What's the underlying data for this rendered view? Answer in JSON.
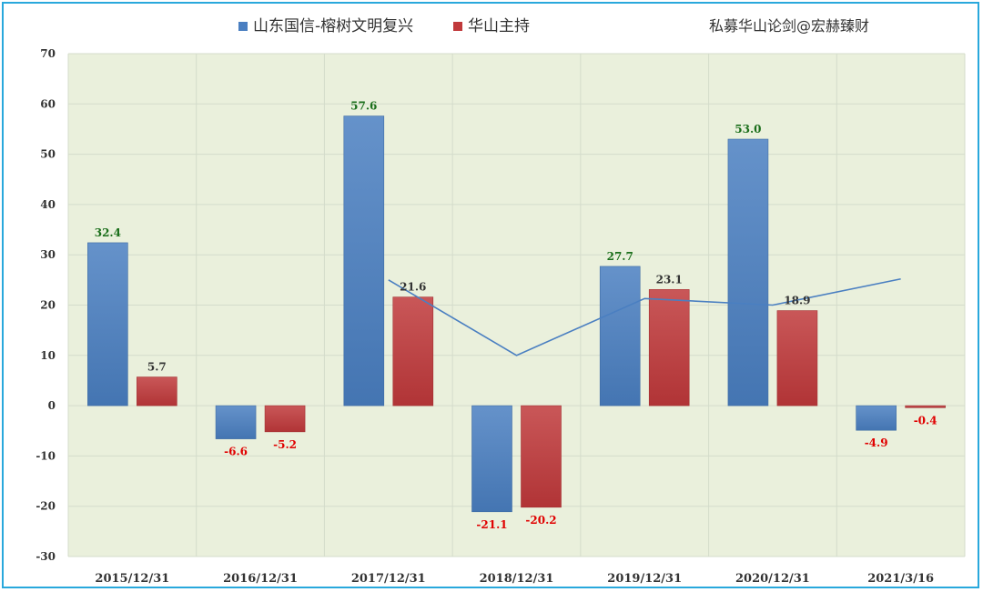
{
  "chart_data": {
    "type": "bar",
    "categories": [
      "2015/12/31",
      "2016/12/31",
      "2017/12/31",
      "2018/12/31",
      "2019/12/31",
      "2020/12/31",
      "2021/3/16"
    ],
    "series": [
      {
        "name": "山东国信-榕树文明复兴",
        "color": "#4a7fc1",
        "values": [
          32.4,
          -6.6,
          57.6,
          -21.1,
          27.7,
          53.0,
          -4.9
        ]
      },
      {
        "name": "华山主持",
        "color": "#c0393b",
        "values": [
          5.7,
          -5.2,
          21.6,
          -20.2,
          23.1,
          18.9,
          -0.4
        ]
      }
    ],
    "line": {
      "color": "#4a7fc1",
      "x_start_index": 2,
      "values": [
        25,
        10,
        21.3,
        20,
        25.2
      ]
    },
    "ylim": [
      -30,
      70
    ],
    "yticks": [
      70,
      60,
      50,
      40,
      30,
      20,
      10,
      0,
      -10,
      -20,
      -30
    ],
    "grid": true,
    "legend_position": "top-center",
    "positive_label_color_series1": "#1a6e1a",
    "positive_label_color_series2": "#333333",
    "negative_label_color": "#e00000",
    "plot_background": "#eaf0dc",
    "watermark": "私募华山论剑@宏赫臻财"
  }
}
